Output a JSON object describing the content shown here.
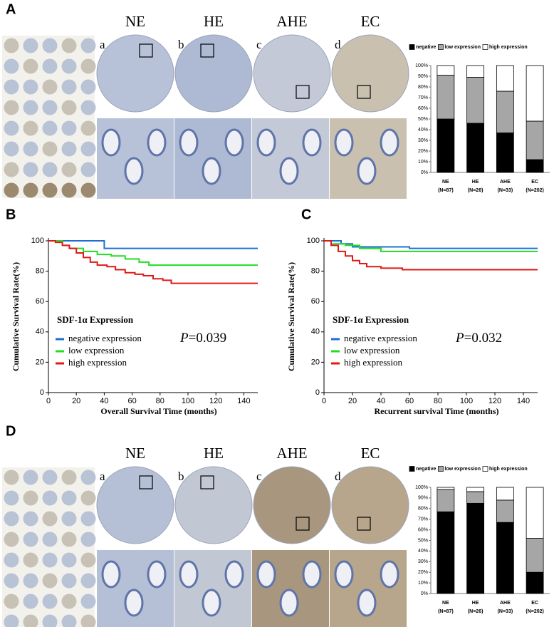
{
  "figure": {
    "panel_labels": [
      "A",
      "B",
      "C",
      "D"
    ],
    "top_images": {
      "titles": [
        "NE",
        "HE",
        "AHE",
        "EC"
      ],
      "letters": [
        "a",
        "b",
        "c",
        "d"
      ]
    },
    "bottom_images": {
      "titles": [
        "NE",
        "HE",
        "AHE",
        "EC"
      ],
      "letters": [
        "a",
        "b",
        "c",
        "d"
      ]
    }
  },
  "chart_data": [
    {
      "type": "bar",
      "stacked": true,
      "categories": [
        "NE",
        "HE",
        "AHE",
        "EC"
      ],
      "category_counts": [
        "(N=87)",
        "(N=26)",
        "(N=33)",
        "(N=202)"
      ],
      "series": [
        {
          "name": "negative",
          "color": "#000000",
          "values": [
            50,
            46,
            37,
            12
          ]
        },
        {
          "name": "low expression",
          "color": "#a6a6a6",
          "values": [
            41,
            43,
            39,
            36
          ]
        },
        {
          "name": "high expression",
          "color": "#ffffff",
          "values": [
            9,
            11,
            24,
            52
          ]
        }
      ],
      "ylim": [
        0,
        100
      ],
      "yticks": [
        {
          "value": 0,
          "label": "0%"
        },
        {
          "value": 10,
          "label": "10%"
        },
        {
          "value": 20,
          "label": "20%"
        },
        {
          "value": 30,
          "label": "30%"
        },
        {
          "value": 40,
          "label": "40%"
        },
        {
          "value": 50,
          "label": "50%"
        },
        {
          "value": 60,
          "label": "60%"
        },
        {
          "value": 70,
          "label": "70%"
        },
        {
          "value": 80,
          "label": "80%"
        },
        {
          "value": 90,
          "label": "90%"
        },
        {
          "value": 100,
          "label": "100%"
        }
      ]
    },
    {
      "type": "line",
      "x_label": "Overall Survival Time (months)",
      "y_label": "Cumulative Survival Rate(%)",
      "legend_title": "SDF-1α  Expression",
      "p_value": {
        "symbol": "P",
        "text": "=0.039"
      },
      "xlim": [
        0,
        150
      ],
      "ylim": [
        0,
        100
      ],
      "xticks": [
        0,
        20,
        40,
        60,
        80,
        100,
        120,
        140
      ],
      "yticks": [
        0,
        20,
        40,
        60,
        80,
        100
      ],
      "series": [
        {
          "name": "negative expression",
          "color": "#1f6fd1",
          "x": [
            0,
            40,
            40,
            150
          ],
          "values": [
            100,
            100,
            95,
            95
          ]
        },
        {
          "name": "low expression",
          "color": "#22dd22",
          "x": [
            0,
            10,
            10,
            15,
            15,
            25,
            25,
            35,
            35,
            45,
            45,
            55,
            55,
            65,
            65,
            72,
            72,
            150
          ],
          "values": [
            100,
            100,
            97,
            97,
            95,
            95,
            93,
            93,
            91,
            91,
            90,
            90,
            88,
            88,
            86,
            86,
            84,
            84
          ]
        },
        {
          "name": "high expression",
          "color": "#e01818",
          "x": [
            0,
            5,
            5,
            10,
            10,
            15,
            15,
            20,
            20,
            25,
            25,
            30,
            30,
            35,
            35,
            42,
            42,
            48,
            48,
            55,
            55,
            62,
            62,
            68,
            68,
            75,
            75,
            82,
            82,
            88,
            88,
            150
          ],
          "values": [
            100,
            100,
            99,
            99,
            97,
            97,
            95,
            95,
            92,
            92,
            89,
            89,
            86,
            86,
            84,
            84,
            83,
            83,
            81,
            81,
            79,
            79,
            78,
            78,
            77,
            77,
            75,
            75,
            74,
            74,
            72,
            72
          ]
        }
      ]
    },
    {
      "type": "line",
      "x_label": "Recurrent survival Time (months)",
      "y_label": "Cumulative Survival Rate(%)",
      "legend_title": "SDF-1α   Expression",
      "p_value": {
        "symbol": "P",
        "text": "=0.032"
      },
      "xlim": [
        0,
        150
      ],
      "ylim": [
        0,
        100
      ],
      "xticks": [
        0,
        20,
        40,
        60,
        80,
        100,
        120,
        140
      ],
      "yticks": [
        0,
        20,
        40,
        60,
        80,
        100
      ],
      "series": [
        {
          "name": "negative expression",
          "color": "#1f6fd1",
          "x": [
            0,
            12,
            12,
            20,
            20,
            60,
            60,
            150
          ],
          "values": [
            100,
            100,
            98,
            98,
            96,
            96,
            95,
            95
          ]
        },
        {
          "name": "low expression",
          "color": "#22dd22",
          "x": [
            0,
            5,
            5,
            15,
            15,
            25,
            25,
            40,
            40,
            150
          ],
          "values": [
            100,
            100,
            98,
            98,
            97,
            97,
            95,
            95,
            93,
            93
          ]
        },
        {
          "name": "high expression",
          "color": "#e01818",
          "x": [
            0,
            5,
            5,
            10,
            10,
            15,
            15,
            20,
            20,
            25,
            25,
            30,
            30,
            40,
            40,
            55,
            55,
            150
          ],
          "values": [
            100,
            100,
            97,
            97,
            93,
            93,
            90,
            90,
            87,
            87,
            85,
            85,
            83,
            83,
            82,
            82,
            81,
            81
          ]
        }
      ]
    },
    {
      "type": "bar",
      "stacked": true,
      "categories": [
        "NE",
        "HE",
        "AHE",
        "EC"
      ],
      "category_counts": [
        "(N=87)",
        "(N=26)",
        "(N=33)",
        "(N=202)"
      ],
      "series": [
        {
          "name": "negative",
          "color": "#000000",
          "values": [
            77,
            85,
            67,
            20
          ]
        },
        {
          "name": "low expression",
          "color": "#a6a6a6",
          "values": [
            21,
            11,
            21,
            32
          ]
        },
        {
          "name": "high expression",
          "color": "#ffffff",
          "values": [
            2,
            4,
            12,
            48
          ]
        }
      ],
      "ylim": [
        0,
        100
      ],
      "yticks": [
        {
          "value": 0,
          "label": "0%"
        },
        {
          "value": 10,
          "label": "10%"
        },
        {
          "value": 20,
          "label": "20%"
        },
        {
          "value": 30,
          "label": "30%"
        },
        {
          "value": 40,
          "label": "40%"
        },
        {
          "value": 50,
          "label": "50%"
        },
        {
          "value": 60,
          "label": "60%"
        },
        {
          "value": 70,
          "label": "70%"
        },
        {
          "value": 80,
          "label": "80%"
        },
        {
          "value": 90,
          "label": "90%"
        },
        {
          "value": 100,
          "label": "100%"
        }
      ]
    }
  ]
}
